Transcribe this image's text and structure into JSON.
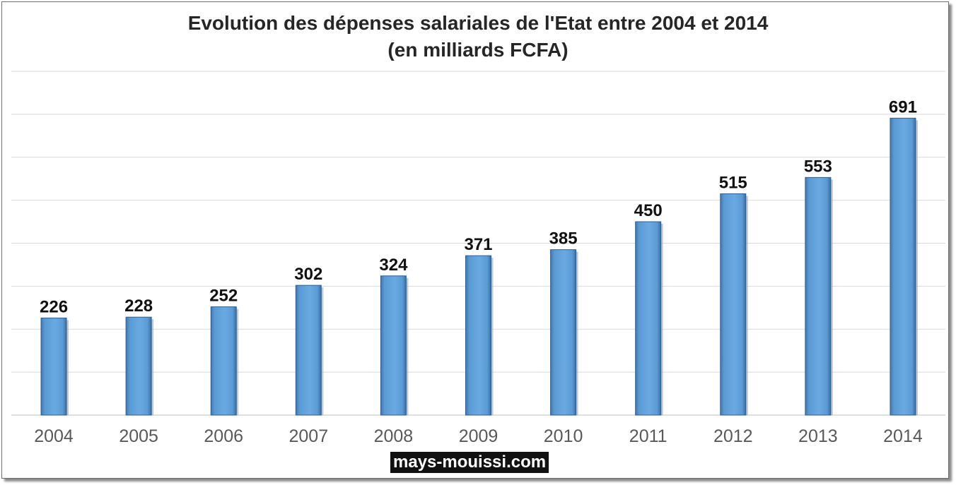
{
  "chart_data": {
    "type": "bar",
    "title": "Evolution des dépenses salariales de l'Etat entre 2004 et 2014",
    "subtitle": "(en milliards FCFA)",
    "categories": [
      "2004",
      "2005",
      "2006",
      "2007",
      "2008",
      "2009",
      "2010",
      "2011",
      "2012",
      "2013",
      "2014"
    ],
    "values": [
      226,
      228,
      252,
      302,
      324,
      371,
      385,
      450,
      515,
      553,
      691
    ],
    "ylim": [
      0,
      800
    ],
    "grid": true,
    "legend": "none",
    "bar_color": "#5B9BD5",
    "data_labels": true
  },
  "watermark": "mays-mouissi.com"
}
